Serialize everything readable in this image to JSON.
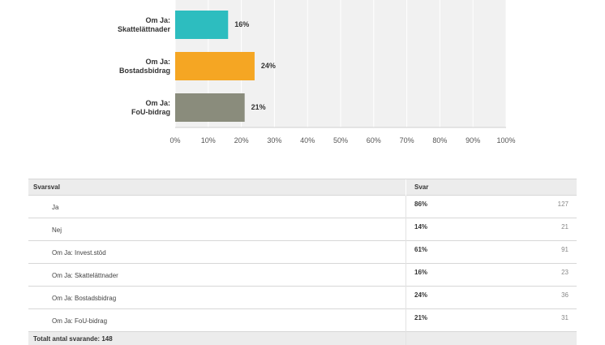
{
  "chart_data": {
    "type": "bar",
    "orientation": "horizontal",
    "categories": [
      [
        "Om Ja:",
        "Skattelättnader"
      ],
      [
        "Om Ja:",
        "Bostadsbidrag"
      ],
      [
        "Om Ja:",
        "FoU-bidrag"
      ]
    ],
    "values": [
      16,
      24,
      21
    ],
    "value_labels": [
      "16%",
      "24%",
      "21%"
    ],
    "colors": [
      "#2dbdbf",
      "#f5a623",
      "#8a8c7c"
    ],
    "xlim": [
      0,
      100
    ],
    "xticks": [
      "0%",
      "10%",
      "20%",
      "30%",
      "40%",
      "50%",
      "60%",
      "70%",
      "80%",
      "90%",
      "100%"
    ],
    "grid": true
  },
  "table": {
    "header": {
      "option": "Svarsval",
      "answers": "Svar"
    },
    "rows": [
      {
        "option": "Ja",
        "percent": "86%",
        "count": "127"
      },
      {
        "option": "Nej",
        "percent": "14%",
        "count": "21"
      },
      {
        "option": "Om Ja: Invest.stöd",
        "percent": "61%",
        "count": "91"
      },
      {
        "option": "Om Ja: Skattelättnader",
        "percent": "16%",
        "count": "23"
      },
      {
        "option": "Om Ja: Bostadsbidrag",
        "percent": "24%",
        "count": "36"
      },
      {
        "option": "Om Ja: FoU-bidrag",
        "percent": "21%",
        "count": "31"
      }
    ],
    "total": "Totalt antal svarande: 148"
  }
}
